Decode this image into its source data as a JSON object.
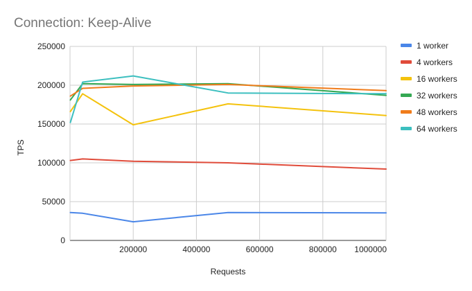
{
  "chart_data": {
    "type": "line",
    "title": "Connection: Keep-Alive",
    "xlabel": "Requests",
    "ylabel": "TPS",
    "xlim": [
      0,
      1000000
    ],
    "ylim": [
      0,
      250000
    ],
    "x_ticks": [
      200000,
      400000,
      600000,
      800000,
      1000000
    ],
    "x_tick_labels": [
      "200000",
      "400000",
      "600000",
      "800000",
      "1000000"
    ],
    "y_ticks": [
      0,
      50000,
      100000,
      150000,
      200000,
      250000
    ],
    "y_tick_labels": [
      "0",
      "50000",
      "100000",
      "150000",
      "200000",
      "250000"
    ],
    "grid": true,
    "legend_position": "right",
    "x": [
      1000,
      40000,
      200000,
      500000,
      1000000
    ],
    "series": [
      {
        "name": "1 worker",
        "color": "#4a86e8",
        "values": [
          36000,
          35000,
          24000,
          36000,
          35500
        ]
      },
      {
        "name": "4 workers",
        "color": "#e04b3a",
        "values": [
          103000,
          105000,
          102000,
          100000,
          92000
        ]
      },
      {
        "name": "16 workers",
        "color": "#f4c20d",
        "values": [
          166000,
          189000,
          149000,
          176000,
          161000
        ]
      },
      {
        "name": "32 workers",
        "color": "#34a853",
        "values": [
          181000,
          202000,
          201000,
          202000,
          187000
        ]
      },
      {
        "name": "48 workers",
        "color": "#f07c1b",
        "values": [
          186000,
          196000,
          199000,
          201000,
          193000
        ]
      },
      {
        "name": "64 workers",
        "color": "#3cbfbf",
        "values": [
          152000,
          204000,
          212000,
          190000,
          189000
        ]
      }
    ]
  }
}
